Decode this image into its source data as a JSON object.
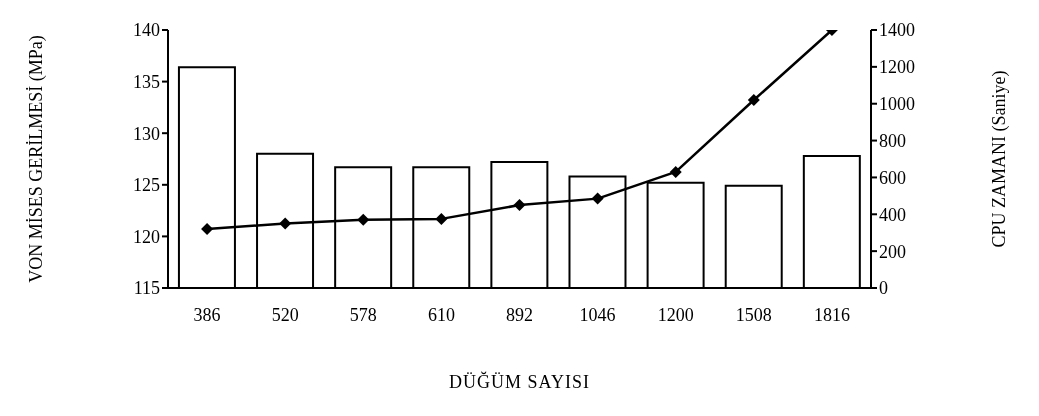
{
  "chart_data": {
    "type": "bar",
    "xlabel": "DÜĞÜM SAYISI",
    "ylabel": "VON MİSES GERİLMESİ (MPa)",
    "y2label": "CPU ZAMANI (Saniye)",
    "categories": [
      "386",
      "520",
      "578",
      "610",
      "892",
      "1046",
      "1200",
      "1508",
      "1816"
    ],
    "series": [
      {
        "color": "#ffffff",
        "values": [
          136.4,
          128.0,
          126.7,
          126.7,
          127.2,
          125.8,
          125.2,
          124.9,
          127.8
        ]
      },
      {
        "type": "line",
        "axis": "y2",
        "color": "#000000",
        "values": [
          320,
          350,
          370,
          375,
          450,
          485,
          630,
          1020,
          1400
        ]
      }
    ],
    "ylim": [
      115,
      140
    ],
    "yticks": [
      115,
      120,
      125,
      130,
      135,
      140
    ],
    "y2lim": [
      0,
      1400
    ],
    "y2ticks": [
      0,
      200,
      400,
      600,
      800,
      1000,
      1200,
      1400
    ],
    "grid": false,
    "marker": "diamond",
    "line_style": "solid"
  }
}
